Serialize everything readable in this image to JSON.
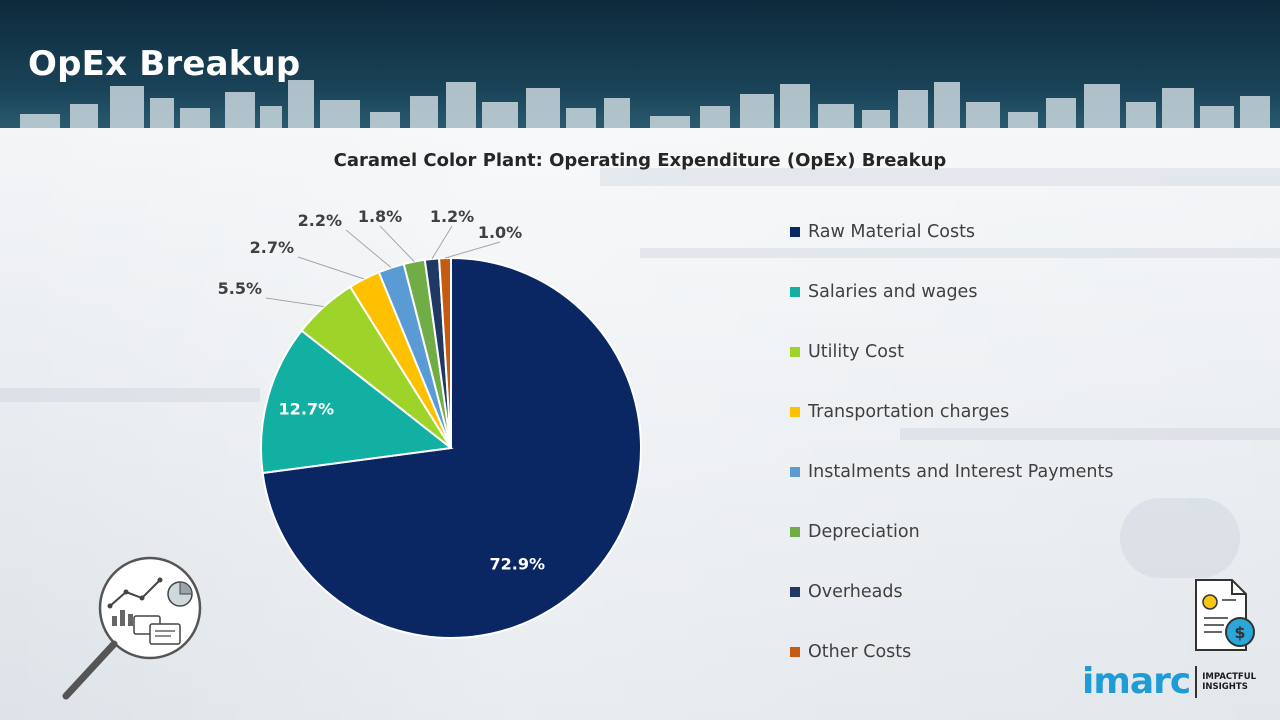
{
  "header": {
    "title": "OpEx Breakup"
  },
  "colors": {
    "header_dark": "#0d2a3c",
    "skyline": "#c9d6dc"
  },
  "chart_data": {
    "type": "pie",
    "title": "Caramel Color Plant: Operating Expenditure (OpEx) Breakup",
    "start_angle_deg": 0,
    "direction": "clockwise",
    "legend_position": "right",
    "slices": [
      {
        "label": "Raw Material Costs",
        "value": 72.9,
        "value_label": "72.9%",
        "color": "#0b2763",
        "label_mode": "inside"
      },
      {
        "label": "Salaries and wages",
        "value": 12.7,
        "value_label": "12.7%",
        "color": "#12b0a2",
        "label_mode": "inside"
      },
      {
        "label": "Utility Cost",
        "value": 5.5,
        "value_label": "5.5%",
        "color": "#9ed42a",
        "label_mode": "outside"
      },
      {
        "label": "Transportation charges",
        "value": 2.7,
        "value_label": "2.7%",
        "color": "#ffc000",
        "label_mode": "outside"
      },
      {
        "label": "Instalments and Interest Payments",
        "value": 2.2,
        "value_label": "2.2%",
        "color": "#5b9bd5",
        "label_mode": "outside"
      },
      {
        "label": "Depreciation",
        "value": 1.8,
        "value_label": "1.8%",
        "color": "#70ad47",
        "label_mode": "outside"
      },
      {
        "label": "Overheads",
        "value": 1.2,
        "value_label": "1.2%",
        "color": "#203864",
        "label_mode": "outside"
      },
      {
        "label": "Other Costs",
        "value": 1.0,
        "value_label": "1.0%",
        "color": "#c55a11",
        "label_mode": "outside"
      }
    ]
  },
  "logo": {
    "word": "imarc",
    "tagline_line1": "IMPACTFUL",
    "tagline_line2": "INSIGHTS"
  },
  "icons": {
    "corner": "analytics-magnifier-icon",
    "document": "finance-document-icon"
  }
}
